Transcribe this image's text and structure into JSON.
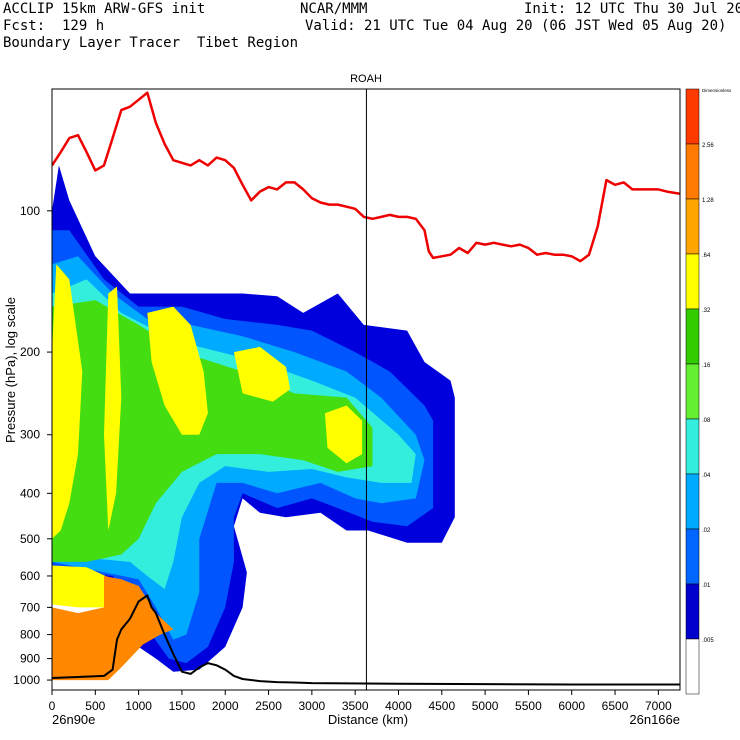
{
  "header": {
    "line1_left": "ACCLIP 15km ARW-GFS init",
    "line1_center": "NCAR/MMM",
    "line1_right": "Init: 12 UTC Thu 30 Jul 20",
    "line2_left": "Fcst:  129 h",
    "line2_right": "Valid: 21 UTC Tue 04 Aug 20 (06 JST Wed 05 Aug 20)",
    "line3_left": "Boundary Layer Tracer  Tibet Region"
  },
  "chart_data": {
    "type": "heatmap",
    "title": "ROAH",
    "xlabel": "Distance (km)",
    "ylabel": "Pressure (hPa), log scale",
    "x_start_label": "26n90e",
    "x_end_label": "26n166e",
    "xlim": [
      0,
      7250
    ],
    "ylim": [
      1050,
      55
    ],
    "y_scale": "log",
    "x_ticks": [
      0,
      500,
      1000,
      1500,
      2000,
      2500,
      3000,
      3500,
      4000,
      4500,
      5000,
      5500,
      6000,
      6500,
      7000
    ],
    "y_ticks": [
      100,
      200,
      300,
      400,
      500,
      600,
      700,
      800,
      900,
      1000
    ],
    "vertical_marker_x": 3630,
    "colorbar": {
      "levels": [
        "Dimensionless",
        "2.56",
        "1.28",
        ".64",
        ".32",
        ".16",
        ".08",
        ".04",
        ".02",
        ".01",
        ".005"
      ],
      "colors": [
        "#ff3a00",
        "#ff7a00",
        "#ffa500",
        "#ffff00",
        "#33cc00",
        "#66ee33",
        "#33eedd",
        "#00aaff",
        "#0066ff",
        "#0000cc",
        "#ffffff"
      ]
    },
    "tracer_regions": [
      {
        "level": "0.01",
        "color": "#0000dd",
        "points": [
          [
            0,
            100
          ],
          [
            80,
            80
          ],
          [
            200,
            95
          ],
          [
            500,
            125
          ],
          [
            900,
            150
          ],
          [
            1400,
            150
          ],
          [
            1800,
            150
          ],
          [
            2200,
            150
          ],
          [
            2600,
            152
          ],
          [
            2900,
            165
          ],
          [
            3300,
            150
          ],
          [
            3600,
            175
          ],
          [
            4100,
            180
          ],
          [
            4300,
            210
          ],
          [
            4600,
            230
          ],
          [
            4650,
            250
          ],
          [
            4650,
            450
          ],
          [
            4500,
            510
          ],
          [
            4100,
            510
          ],
          [
            3650,
            480
          ],
          [
            3400,
            480
          ],
          [
            3100,
            440
          ],
          [
            2700,
            450
          ],
          [
            2400,
            440
          ],
          [
            2200,
            410
          ],
          [
            2100,
            470
          ],
          [
            2250,
            590
          ],
          [
            2200,
            700
          ],
          [
            2000,
            850
          ],
          [
            1700,
            950
          ],
          [
            1400,
            960
          ],
          [
            1200,
            900
          ],
          [
            1000,
            850
          ],
          [
            800,
            700
          ],
          [
            500,
            600
          ],
          [
            0,
            590
          ]
        ]
      },
      {
        "level": "0.02",
        "color": "#0055ff",
        "points": [
          [
            0,
            110
          ],
          [
            200,
            110
          ],
          [
            600,
            140
          ],
          [
            1000,
            160
          ],
          [
            1500,
            160
          ],
          [
            2000,
            170
          ],
          [
            2600,
            175
          ],
          [
            3000,
            180
          ],
          [
            3500,
            200
          ],
          [
            3900,
            220
          ],
          [
            4300,
            260
          ],
          [
            4400,
            280
          ],
          [
            4400,
            430
          ],
          [
            4100,
            470
          ],
          [
            3700,
            460
          ],
          [
            3300,
            430
          ],
          [
            3000,
            410
          ],
          [
            2600,
            430
          ],
          [
            2200,
            400
          ],
          [
            2100,
            450
          ],
          [
            2100,
            560
          ],
          [
            2000,
            700
          ],
          [
            1800,
            850
          ],
          [
            1550,
            920
          ],
          [
            1350,
            900
          ],
          [
            1150,
            800
          ],
          [
            950,
            680
          ],
          [
            700,
            600
          ],
          [
            0,
            580
          ]
        ]
      },
      {
        "level": "0.04",
        "color": "#00aaff",
        "points": [
          [
            0,
            130
          ],
          [
            300,
            125
          ],
          [
            700,
            150
          ],
          [
            1100,
            170
          ],
          [
            1600,
            175
          ],
          [
            2200,
            185
          ],
          [
            2800,
            200
          ],
          [
            3400,
            220
          ],
          [
            3800,
            250
          ],
          [
            4200,
            300
          ],
          [
            4300,
            340
          ],
          [
            4200,
            410
          ],
          [
            3800,
            420
          ],
          [
            3500,
            410
          ],
          [
            3100,
            380
          ],
          [
            2600,
            400
          ],
          [
            2200,
            380
          ],
          [
            1900,
            380
          ],
          [
            1700,
            500
          ],
          [
            1700,
            650
          ],
          [
            1550,
            800
          ],
          [
            1400,
            820
          ],
          [
            1200,
            700
          ],
          [
            1000,
            610
          ],
          [
            0,
            560
          ]
        ]
      },
      {
        "level": "0.08",
        "color": "#33eedd",
        "points": [
          [
            0,
            150
          ],
          [
            400,
            140
          ],
          [
            800,
            165
          ],
          [
            1200,
            180
          ],
          [
            1700,
            195
          ],
          [
            2400,
            210
          ],
          [
            3000,
            230
          ],
          [
            3500,
            250
          ],
          [
            4000,
            300
          ],
          [
            4200,
            330
          ],
          [
            4150,
            380
          ],
          [
            3800,
            380
          ],
          [
            3400,
            370
          ],
          [
            3000,
            355
          ],
          [
            2500,
            360
          ],
          [
            2000,
            350
          ],
          [
            1700,
            380
          ],
          [
            1500,
            450
          ],
          [
            1400,
            560
          ],
          [
            1300,
            640
          ],
          [
            1100,
            600
          ],
          [
            900,
            560
          ],
          [
            0,
            540
          ]
        ]
      },
      {
        "level": "0.16",
        "color": "#44dd11",
        "points": [
          [
            0,
            160
          ],
          [
            500,
            155
          ],
          [
            1000,
            175
          ],
          [
            1500,
            200
          ],
          [
            2200,
            220
          ],
          [
            2800,
            245
          ],
          [
            3400,
            250
          ],
          [
            3700,
            290
          ],
          [
            3700,
            350
          ],
          [
            3300,
            360
          ],
          [
            2900,
            340
          ],
          [
            2400,
            330
          ],
          [
            1900,
            330
          ],
          [
            1500,
            360
          ],
          [
            1200,
            420
          ],
          [
            1000,
            500
          ],
          [
            800,
            540
          ],
          [
            400,
            560
          ],
          [
            0,
            560
          ]
        ]
      },
      {
        "level": "0.32",
        "color": "#ffff00",
        "points": [
          [
            50,
            130
          ],
          [
            200,
            140
          ],
          [
            350,
            220
          ],
          [
            300,
            330
          ],
          [
            200,
            420
          ],
          [
            100,
            480
          ],
          [
            0,
            500
          ],
          [
            0,
            200
          ]
        ]
      },
      {
        "level": "0.32",
        "color": "#ffff00",
        "points": [
          [
            1100,
            165
          ],
          [
            1400,
            160
          ],
          [
            1600,
            175
          ],
          [
            1750,
            220
          ],
          [
            1800,
            270
          ],
          [
            1700,
            300
          ],
          [
            1500,
            300
          ],
          [
            1300,
            260
          ],
          [
            1150,
            210
          ]
        ]
      },
      {
        "level": "0.32",
        "color": "#ffff00",
        "points": [
          [
            2100,
            200
          ],
          [
            2400,
            195
          ],
          [
            2700,
            215
          ],
          [
            2750,
            240
          ],
          [
            2550,
            255
          ],
          [
            2200,
            245
          ]
        ]
      },
      {
        "level": "0.32",
        "color": "#ffff00",
        "points": [
          [
            3150,
            270
          ],
          [
            3400,
            260
          ],
          [
            3580,
            280
          ],
          [
            3580,
            330
          ],
          [
            3400,
            345
          ],
          [
            3180,
            320
          ]
        ]
      },
      {
        "level": "0.32",
        "color": "#ffff00",
        "points": [
          [
            0,
            570
          ],
          [
            400,
            575
          ],
          [
            700,
            610
          ],
          [
            700,
            700
          ],
          [
            300,
            700
          ],
          [
            0,
            690
          ]
        ]
      },
      {
        "level": "0.64",
        "color": "#ff8800",
        "points": [
          [
            600,
            600
          ],
          [
            800,
            610
          ],
          [
            1000,
            630
          ],
          [
            1200,
            720
          ],
          [
            1400,
            780
          ],
          [
            1250,
            800
          ],
          [
            1050,
            840
          ],
          [
            800,
            940
          ],
          [
            650,
            1000
          ],
          [
            0,
            1000
          ],
          [
            0,
            700
          ],
          [
            300,
            720
          ],
          [
            600,
            700
          ]
        ]
      }
    ],
    "tracer_scattered_bits": [
      {
        "color": "#ffff00",
        "points": [
          [
            650,
            150
          ],
          [
            750,
            145
          ],
          [
            800,
            250
          ],
          [
            740,
            400
          ],
          [
            650,
            480
          ],
          [
            600,
            300
          ]
        ]
      },
      {
        "color": "#ff8800",
        "points": [
          [
            850,
            680
          ],
          [
            950,
            650
          ],
          [
            1000,
            700
          ],
          [
            900,
            760
          ]
        ]
      }
    ],
    "red_line": {
      "name": "",
      "points": [
        [
          0,
          80
        ],
        [
          100,
          75
        ],
        [
          200,
          70
        ],
        [
          300,
          69
        ],
        [
          400,
          75
        ],
        [
          500,
          82
        ],
        [
          600,
          80
        ],
        [
          700,
          70
        ],
        [
          800,
          61
        ],
        [
          900,
          60
        ],
        [
          1000,
          58
        ],
        [
          1100,
          56
        ],
        [
          1200,
          65
        ],
        [
          1300,
          72
        ],
        [
          1400,
          78
        ],
        [
          1500,
          79
        ],
        [
          1600,
          80
        ],
        [
          1700,
          78
        ],
        [
          1800,
          80
        ],
        [
          1900,
          77
        ],
        [
          2000,
          78
        ],
        [
          2100,
          81
        ],
        [
          2200,
          88
        ],
        [
          2300,
          95
        ],
        [
          2400,
          91
        ],
        [
          2500,
          89
        ],
        [
          2600,
          90
        ],
        [
          2700,
          87
        ],
        [
          2800,
          87
        ],
        [
          2900,
          90
        ],
        [
          3000,
          94
        ],
        [
          3100,
          96
        ],
        [
          3200,
          97
        ],
        [
          3300,
          97
        ],
        [
          3400,
          98
        ],
        [
          3500,
          99
        ],
        [
          3600,
          103
        ],
        [
          3700,
          104
        ],
        [
          3800,
          103
        ],
        [
          3900,
          102
        ],
        [
          4000,
          103
        ],
        [
          4100,
          103
        ],
        [
          4200,
          104
        ],
        [
          4300,
          110
        ],
        [
          4350,
          122
        ],
        [
          4400,
          126
        ],
        [
          4500,
          125
        ],
        [
          4600,
          124
        ],
        [
          4700,
          120
        ],
        [
          4800,
          123
        ],
        [
          4900,
          117
        ],
        [
          5000,
          118
        ],
        [
          5100,
          117
        ],
        [
          5200,
          118
        ],
        [
          5300,
          119
        ],
        [
          5400,
          118
        ],
        [
          5500,
          120
        ],
        [
          5600,
          124
        ],
        [
          5700,
          123
        ],
        [
          5800,
          124
        ],
        [
          5900,
          124
        ],
        [
          6000,
          125
        ],
        [
          6100,
          128
        ],
        [
          6200,
          124
        ],
        [
          6300,
          108
        ],
        [
          6400,
          86
        ],
        [
          6500,
          88
        ],
        [
          6600,
          87
        ],
        [
          6700,
          90
        ],
        [
          6800,
          90
        ],
        [
          6900,
          90
        ],
        [
          7000,
          90
        ],
        [
          7100,
          91
        ],
        [
          7250,
          92
        ]
      ]
    },
    "terrain_line": {
      "name": "",
      "points": [
        [
          0,
          990
        ],
        [
          300,
          985
        ],
        [
          600,
          980
        ],
        [
          700,
          950
        ],
        [
          750,
          820
        ],
        [
          800,
          780
        ],
        [
          900,
          740
        ],
        [
          1000,
          680
        ],
        [
          1100,
          660
        ],
        [
          1150,
          700
        ],
        [
          1200,
          720
        ],
        [
          1300,
          800
        ],
        [
          1400,
          880
        ],
        [
          1500,
          960
        ],
        [
          1600,
          970
        ],
        [
          1700,
          940
        ],
        [
          1800,
          920
        ],
        [
          1900,
          930
        ],
        [
          2000,
          950
        ],
        [
          2100,
          980
        ],
        [
          2200,
          995
        ],
        [
          2400,
          1005
        ],
        [
          2600,
          1010
        ],
        [
          2800,
          1012
        ],
        [
          3000,
          1015
        ],
        [
          4000,
          1018
        ],
        [
          5000,
          1020
        ],
        [
          6000,
          1022
        ],
        [
          7250,
          1022
        ]
      ]
    }
  }
}
